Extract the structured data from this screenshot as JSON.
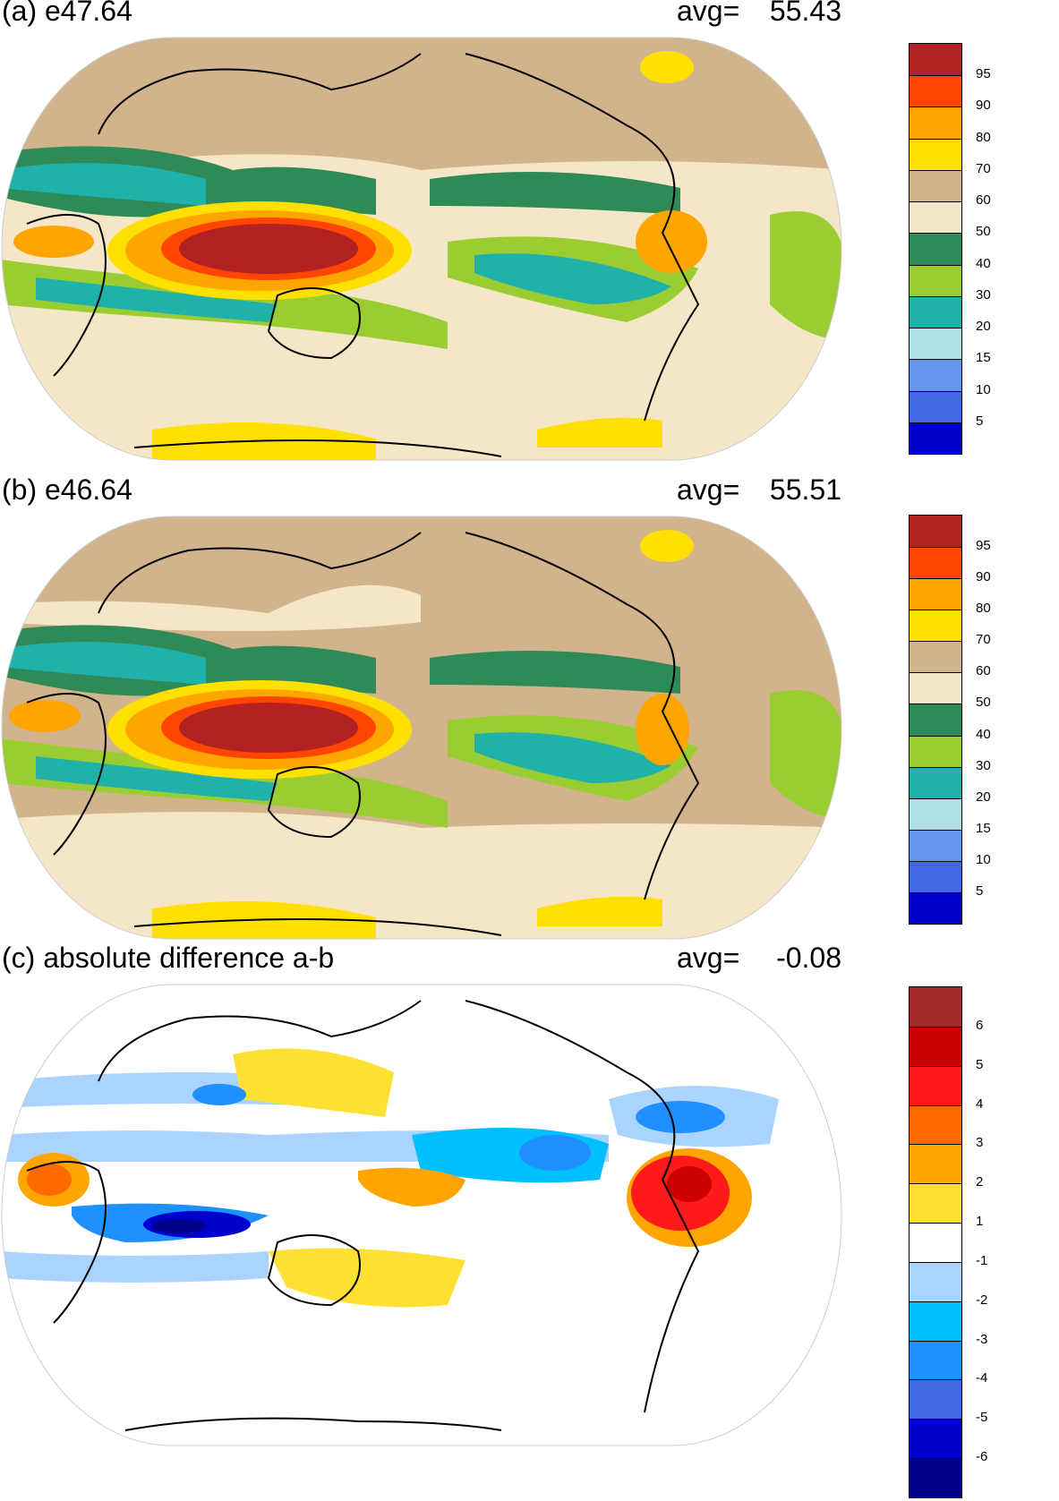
{
  "panels": [
    {
      "title": "(a) e47.64",
      "avg_label": "avg=",
      "avg_value": "55.43",
      "colorbar_labels": [
        "95",
        "90",
        "80",
        "70",
        "60",
        "50",
        "40",
        "30",
        "20",
        "15",
        "10",
        "5"
      ],
      "colorbar_colors": [
        "#b22222",
        "#ff4500",
        "#ffa500",
        "#ffe000",
        "#d2b48c",
        "#f5e6c8",
        "#2e8b57",
        "#9acd32",
        "#20b2aa",
        "#b0e0e6",
        "#6495ed",
        "#4169e1",
        "#0000cd"
      ]
    },
    {
      "title": "(b) e46.64",
      "avg_label": "avg=",
      "avg_value": "55.51",
      "colorbar_labels": [
        "95",
        "90",
        "80",
        "70",
        "60",
        "50",
        "40",
        "30",
        "20",
        "15",
        "10",
        "5"
      ],
      "colorbar_colors": [
        "#b22222",
        "#ff4500",
        "#ffa500",
        "#ffe000",
        "#d2b48c",
        "#f5e6c8",
        "#2e8b57",
        "#9acd32",
        "#20b2aa",
        "#b0e0e6",
        "#6495ed",
        "#4169e1",
        "#0000cd"
      ]
    },
    {
      "title": "(c) absolute difference a-b",
      "avg_label": "avg=",
      "avg_value": "-0.08",
      "colorbar_labels": [
        "6",
        "5",
        "4",
        "3",
        "2",
        "1",
        "-1",
        "-2",
        "-3",
        "-4",
        "-5",
        "-6"
      ],
      "colorbar_colors": [
        "#a52a2a",
        "#cc0000",
        "#ff1a1a",
        "#ff6a00",
        "#ffa500",
        "#ffe033",
        "#ffffff",
        "#aad4ff",
        "#00bfff",
        "#1e90ff",
        "#4169e1",
        "#0000cd",
        "#00008b"
      ]
    }
  ]
}
